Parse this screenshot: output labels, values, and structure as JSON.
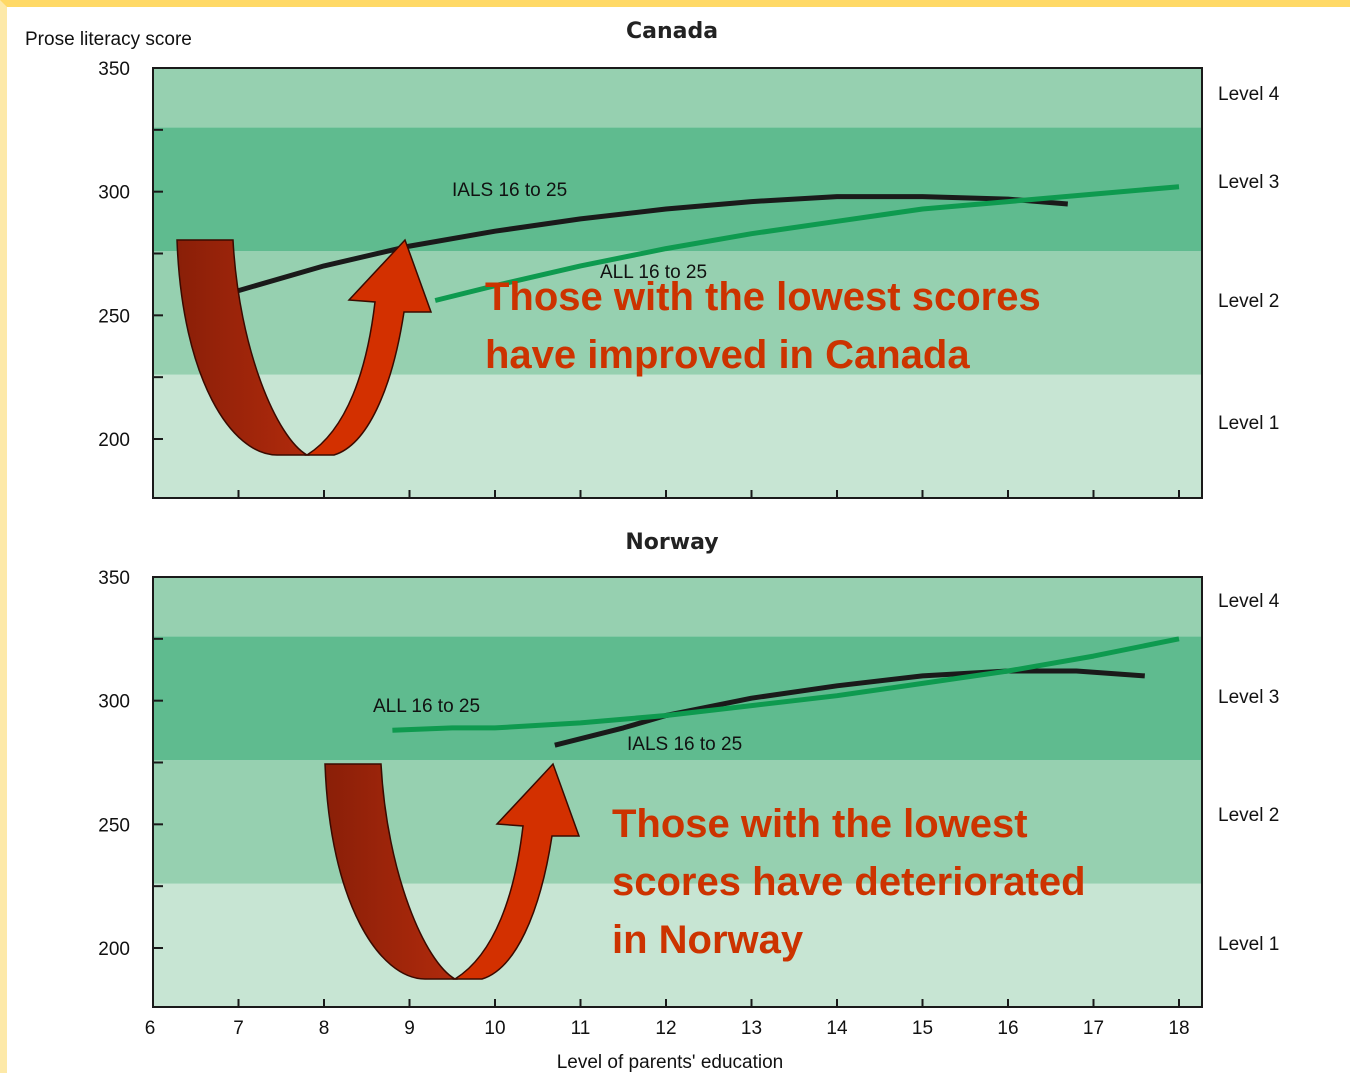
{
  "chart_data": [
    {
      "type": "line",
      "title": "Canada",
      "ylabel": "Prose literacy score",
      "xlabel": "",
      "ylim": [
        175,
        350
      ],
      "xlim": [
        6,
        18
      ],
      "yticks": [
        "350",
        "300",
        "250",
        "200"
      ],
      "bands": [
        {
          "name": "Level 1",
          "from": 175,
          "to": 226,
          "color": "#c7e5d3"
        },
        {
          "name": "Level 2",
          "from": 226,
          "to": 276,
          "color": "#96d0b0"
        },
        {
          "name": "Level 3",
          "from": 276,
          "to": 326,
          "color": "#5fbb8f"
        },
        {
          "name": "Level 4",
          "from": 326,
          "to": 350,
          "color": "#96d0b0"
        }
      ],
      "series": [
        {
          "name": "IALS 16 to 25",
          "color": "#1a1a1a",
          "x": [
            7,
            8,
            9,
            10,
            11,
            12,
            13,
            14,
            15,
            16,
            16.7
          ],
          "y": [
            260,
            270,
            278,
            284,
            289,
            293,
            296,
            298,
            298,
            297,
            295
          ]
        },
        {
          "name": "ALL 16 to 25",
          "color": "#0e9a4f",
          "x": [
            9.3,
            10,
            11,
            12,
            13,
            14,
            15,
            16,
            17,
            18
          ],
          "y": [
            256,
            262,
            270,
            277,
            283,
            288,
            293,
            296,
            299,
            302
          ]
        }
      ],
      "callout": [
        "Those with the lowest scores",
        "have improved in Canada"
      ]
    },
    {
      "type": "line",
      "title": "Norway",
      "ylabel": "",
      "xlabel": "Level of parents' education",
      "ylim": [
        175,
        350
      ],
      "xlim": [
        6,
        18
      ],
      "xticks": [
        "6",
        "7",
        "8",
        "9",
        "10",
        "11",
        "12",
        "13",
        "14",
        "15",
        "16",
        "17",
        "18"
      ],
      "yticks": [
        "350",
        "300",
        "250",
        "200"
      ],
      "bands": [
        {
          "name": "Level 1",
          "from": 175,
          "to": 226,
          "color": "#c7e5d3"
        },
        {
          "name": "Level 2",
          "from": 226,
          "to": 276,
          "color": "#96d0b0"
        },
        {
          "name": "Level 3",
          "from": 276,
          "to": 326,
          "color": "#5fbb8f"
        },
        {
          "name": "Level 4",
          "from": 326,
          "to": 350,
          "color": "#96d0b0"
        }
      ],
      "series": [
        {
          "name": "IALS 16 to 25",
          "color": "#1a1a1a",
          "x": [
            10.7,
            11.5,
            12,
            13,
            14,
            15,
            16,
            16.8,
            17.6
          ],
          "y": [
            282,
            289,
            294,
            301,
            306,
            310,
            312,
            312,
            310
          ]
        },
        {
          "name": "ALL 16 to 25",
          "color": "#0e9a4f",
          "x": [
            8.8,
            9.5,
            10,
            11,
            12,
            13,
            14,
            15,
            16,
            17,
            18
          ],
          "y": [
            288,
            289,
            289,
            291,
            294,
            298,
            302,
            307,
            312,
            318,
            325
          ]
        }
      ],
      "callout": [
        "Those with the lowest",
        "scores have deteriorated",
        " in Norway"
      ]
    }
  ]
}
